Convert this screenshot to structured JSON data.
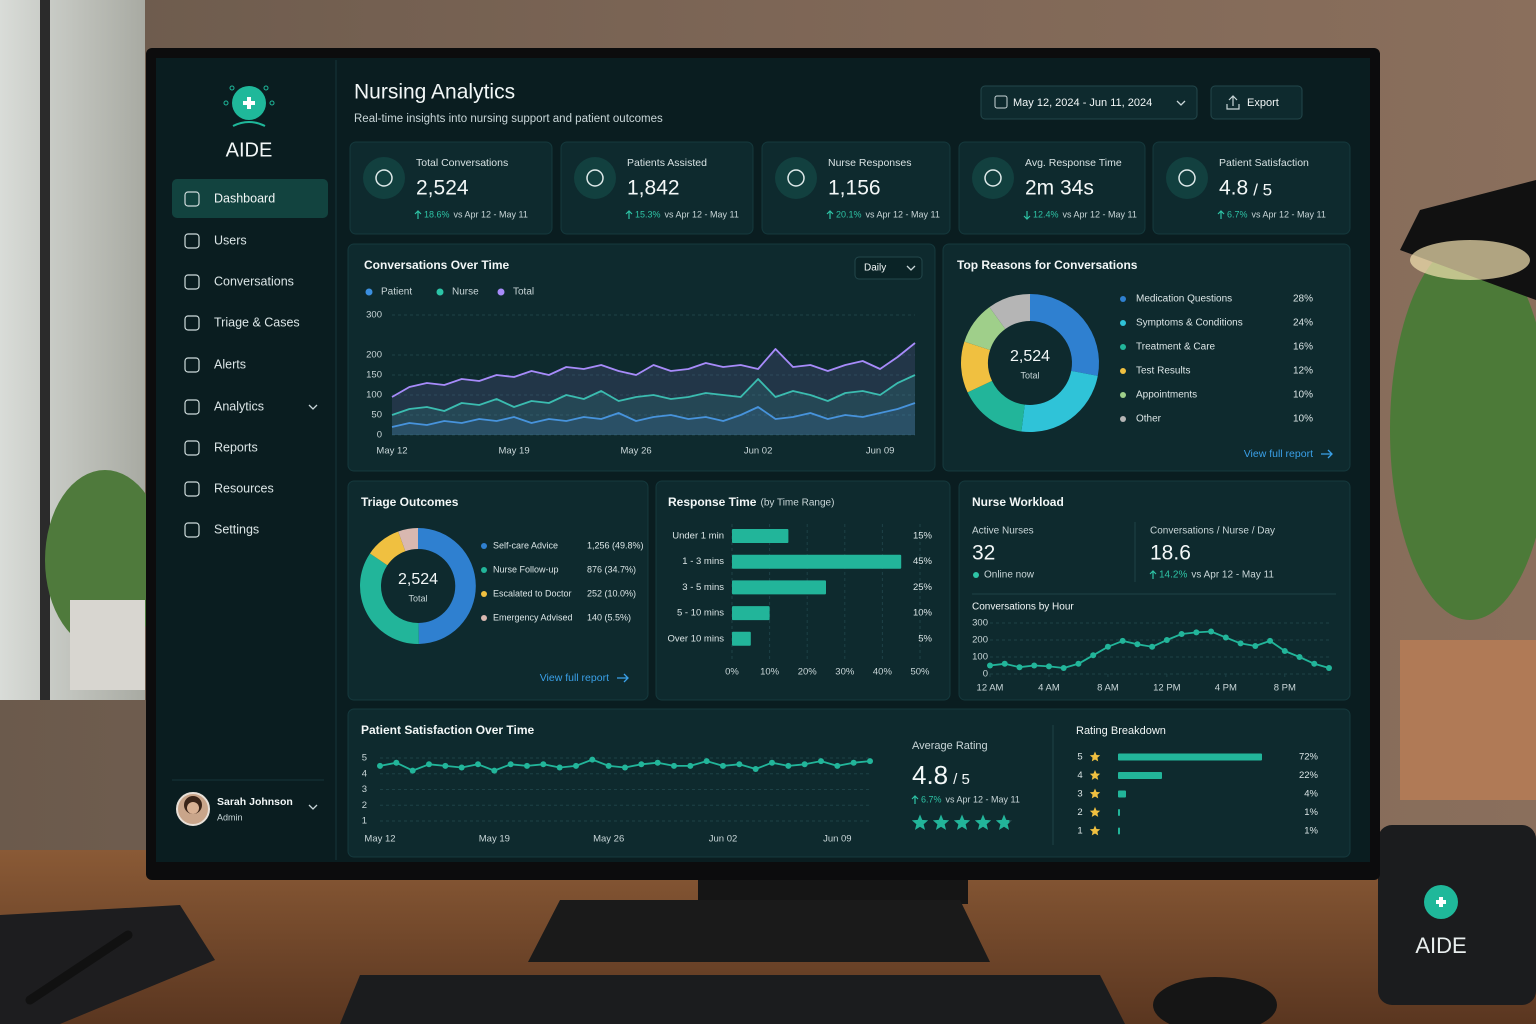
{
  "scene": {
    "mug_text": "AIDE"
  },
  "sidebar": {
    "brand": "AIDE",
    "nav": [
      "Dashboard",
      "Users",
      "Conversations",
      "Triage & Cases",
      "Alerts",
      "Analytics",
      "Reports",
      "Resources",
      "Settings"
    ],
    "active": 0,
    "user": {
      "name": "Sarah Johnson",
      "role": "Admin"
    }
  },
  "header": {
    "title": "Nursing Analytics",
    "subtitle": "Real-time insights into nursing support and patient outcomes",
    "date_range": "May 12, 2024 - Jun 11, 2024",
    "export": "Export"
  },
  "kpis": [
    {
      "label": "Total Conversations",
      "value": "2,524",
      "change": "18.6%",
      "direction": "up",
      "comparison": "vs Apr 12 - May 11"
    },
    {
      "label": "Patients Assisted",
      "value": "1,842",
      "change": "15.3%",
      "direction": "up",
      "comparison": "vs Apr 12 - May 11"
    },
    {
      "label": "Nurse Responses",
      "value": "1,156",
      "change": "20.1%",
      "direction": "up",
      "comparison": "vs Apr 12 - May 11"
    },
    {
      "label": "Avg. Response Time",
      "value": "2m 34s",
      "change": "12.4%",
      "direction": "down",
      "comparison": "vs Apr 12 - May 11"
    },
    {
      "label": "Patient Satisfaction",
      "value": "4.8",
      "suffix": "/ 5",
      "change": "6.7%",
      "direction": "up",
      "comparison": "vs Apr 12 - May 11"
    }
  ],
  "workload": {
    "title": "Nurse Workload",
    "active_label": "Active Nurses",
    "active_value": "32",
    "status": "Online now",
    "rate_label": "Conversations / Nurse / Day",
    "rate_value": "18.6",
    "change": "14.2%",
    "direction": "up",
    "comparison": "vs Apr 12 - May 11"
  },
  "rating": {
    "title": "Average Rating",
    "value": 4.8,
    "suffix": "/ 5",
    "scale": 5,
    "change": "6.7%",
    "direction": "up",
    "comparison": "vs Apr 12 - May 11",
    "color": "#22b59a"
  },
  "chart_data": [
    {
      "type": "line",
      "title": "Conversations Over Time",
      "interval": "Daily",
      "categories": [
        "May 12",
        null,
        null,
        null,
        null,
        null,
        null,
        "May 19",
        null,
        null,
        null,
        null,
        null,
        null,
        "May 26",
        null,
        null,
        null,
        null,
        null,
        null,
        "Jun 02",
        null,
        null,
        null,
        null,
        null,
        null,
        "Jun 09",
        null,
        null
      ],
      "series": [
        {
          "name": "Patient",
          "color": "#3b8fe0",
          "values": [
            20,
            30,
            25,
            35,
            30,
            40,
            35,
            45,
            30,
            40,
            35,
            45,
            40,
            55,
            35,
            45,
            50,
            40,
            45,
            35,
            50,
            70,
            40,
            45,
            55,
            40,
            50,
            45,
            55,
            65,
            80
          ]
        },
        {
          "name": "Nurse",
          "color": "#2bc4a6",
          "values": [
            50,
            65,
            70,
            60,
            80,
            75,
            90,
            70,
            85,
            80,
            100,
            90,
            110,
            85,
            95,
            100,
            90,
            95,
            105,
            100,
            95,
            140,
            95,
            110,
            100,
            85,
            105,
            110,
            100,
            130,
            150
          ]
        },
        {
          "name": "Total",
          "color": "#a78bfa",
          "values": [
            95,
            120,
            130,
            125,
            140,
            135,
            150,
            145,
            160,
            150,
            170,
            165,
            175,
            160,
            150,
            175,
            160,
            165,
            180,
            170,
            175,
            165,
            215,
            170,
            175,
            160,
            175,
            185,
            165,
            195,
            230
          ]
        }
      ],
      "ylim": [
        0,
        300
      ],
      "yticks": [
        0,
        50,
        100,
        150,
        200,
        300
      ],
      "grid": true
    },
    {
      "type": "donut",
      "title": "Top Reasons for Conversations",
      "categories": [
        "Medication Questions",
        "Symptoms & Conditions",
        "Treatment & Care",
        "Test Results",
        "Appointments",
        "Other"
      ],
      "values": [
        28,
        24,
        16,
        12,
        10,
        10
      ],
      "value_labels": [
        "28%",
        "24%",
        "16%",
        "12%",
        "10%",
        "10%"
      ],
      "colors": [
        "#2f80d0",
        "#2fc3d8",
        "#22b59a",
        "#f0c040",
        "#9fcf8a",
        "#b5b5b5"
      ],
      "center_value": "2,524",
      "center_label": "Total",
      "link": "View full report"
    },
    {
      "type": "donut",
      "title": "Triage Outcomes",
      "categories": [
        "Self-care Advice",
        "Nurse Follow-up",
        "Escalated to Doctor",
        "Emergency Advised"
      ],
      "values": [
        1256,
        876,
        252,
        140
      ],
      "value_labels": [
        "1,256 (49.8%)",
        "876 (34.7%)",
        "252 (10.0%)",
        "140 (5.5%)"
      ],
      "colors": [
        "#2f80d0",
        "#22b59a",
        "#f0c040",
        "#d9b8b0"
      ],
      "center_value": "2,524",
      "center_label": "Total",
      "link": "View full report"
    },
    {
      "type": "hbar",
      "title": "Response Time",
      "subtitle": "(by Time Range)",
      "categories": [
        "Under 1 min",
        "1 - 3 mins",
        "3 - 5 mins",
        "5 - 10 mins",
        "Over 10 mins"
      ],
      "values": [
        15,
        45,
        25,
        10,
        5
      ],
      "value_labels": [
        "15%",
        "45%",
        "25%",
        "10%",
        "5%"
      ],
      "color": "#22b59a",
      "xlim": [
        0,
        50
      ],
      "xticks": [
        {
          "value": 0,
          "label": "0%"
        },
        {
          "value": 10,
          "label": "10%"
        },
        {
          "value": 20,
          "label": "20%"
        },
        {
          "value": 30,
          "label": "30%"
        },
        {
          "value": 40,
          "label": "40%"
        },
        {
          "value": 50,
          "label": "50%"
        }
      ],
      "grid": true
    },
    {
      "type": "line",
      "title": "Conversations by Hour",
      "x": [
        0,
        1,
        2,
        3,
        4,
        5,
        6,
        7,
        8,
        9,
        10,
        11,
        12,
        13,
        14,
        15,
        16,
        17,
        18,
        19,
        20,
        21,
        22,
        23
      ],
      "values": [
        50,
        60,
        40,
        50,
        45,
        35,
        60,
        110,
        160,
        195,
        175,
        160,
        200,
        235,
        245,
        250,
        215,
        180,
        165,
        195,
        135,
        100,
        60,
        35
      ],
      "color": "#22b59a",
      "xlim": [
        0,
        23
      ],
      "xticks": [
        {
          "value": 0,
          "label": "12 AM"
        },
        {
          "value": 4,
          "label": "4 AM"
        },
        {
          "value": 8,
          "label": "8 AM"
        },
        {
          "value": 12,
          "label": "12 PM"
        },
        {
          "value": 16,
          "label": "4 PM"
        },
        {
          "value": 20,
          "label": "8 PM"
        }
      ],
      "ylim": [
        0,
        300
      ],
      "yticks": [
        0,
        100,
        200,
        300
      ],
      "grid": true
    },
    {
      "type": "line",
      "title": "Patient Satisfaction Over Time",
      "categories": [
        "May 12",
        null,
        null,
        null,
        null,
        null,
        null,
        "May 19",
        null,
        null,
        null,
        null,
        null,
        null,
        "May 26",
        null,
        null,
        null,
        null,
        null,
        null,
        "Jun 02",
        null,
        null,
        null,
        null,
        null,
        null,
        "Jun 09",
        null,
        null
      ],
      "values": [
        4.5,
        4.7,
        4.2,
        4.6,
        4.5,
        4.4,
        4.6,
        4.2,
        4.6,
        4.5,
        4.6,
        4.4,
        4.5,
        4.9,
        4.5,
        4.4,
        4.6,
        4.7,
        4.5,
        4.5,
        4.8,
        4.5,
        4.6,
        4.3,
        4.7,
        4.5,
        4.6,
        4.8,
        4.5,
        4.7,
        4.8
      ],
      "color": "#22b59a",
      "ylim": [
        1,
        5
      ],
      "yticks": [
        1,
        2,
        3,
        4,
        5
      ],
      "grid": true
    },
    {
      "type": "hbar",
      "title": "Rating Breakdown",
      "categories": [
        "5",
        "4",
        "3",
        "2",
        "1"
      ],
      "values": [
        72,
        22,
        4,
        1,
        1
      ],
      "value_labels": [
        "72%",
        "22%",
        "4%",
        "1%",
        "1%"
      ],
      "color": "#22b59a",
      "xlim": [
        0,
        100
      ]
    }
  ]
}
